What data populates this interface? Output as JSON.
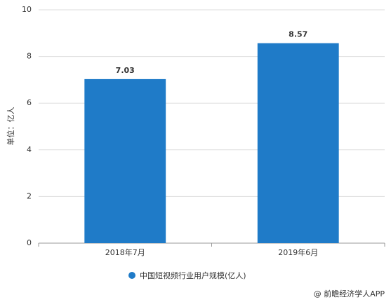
{
  "chart_data": {
    "type": "bar",
    "y_label": "单位：亿人",
    "categories": [
      "2018年7月",
      "2019年6月"
    ],
    "series": [
      {
        "name": "中国短视频行业用户规模(亿人)",
        "color": "#1f7bc8",
        "values": [
          7.03,
          8.57
        ]
      }
    ],
    "ylim": [
      0,
      10
    ],
    "yticks": [
      0,
      2,
      4,
      6,
      8,
      10
    ],
    "grid": true,
    "legend": "bottom",
    "source": "@ 前瞻经济学人APP"
  }
}
